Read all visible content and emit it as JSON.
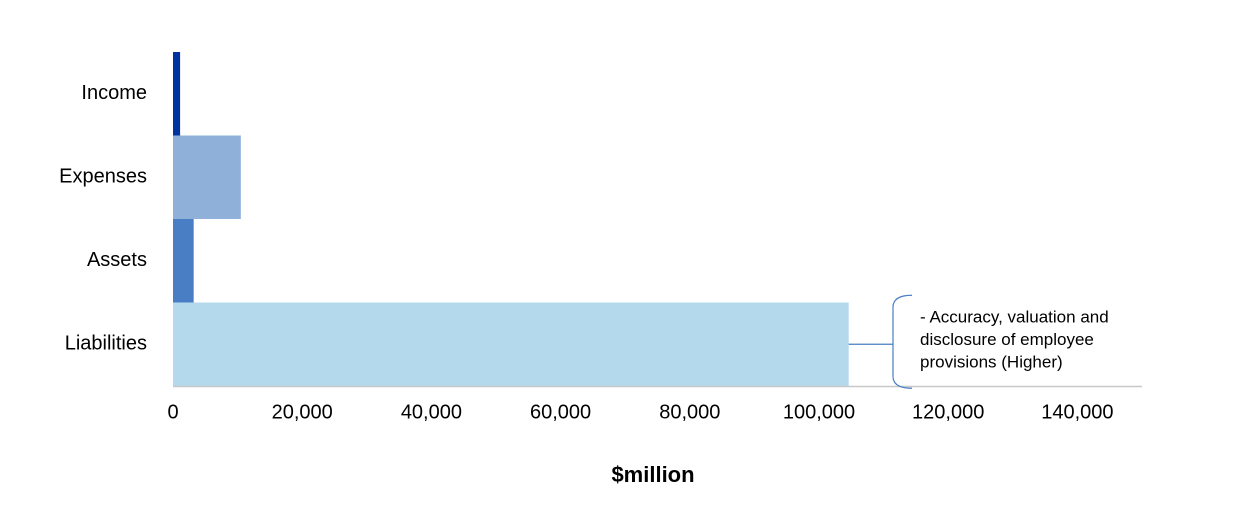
{
  "chart_data": {
    "type": "bar",
    "orientation": "horizontal",
    "categories": [
      "Income",
      "Expenses",
      "Assets",
      "Liabilities"
    ],
    "values": [
      1100,
      10500,
      3200,
      104600
    ],
    "colors": [
      "#0033a0",
      "#8eb0d9",
      "#4a7ec4",
      "#b4d9ec"
    ],
    "x_label": "$million",
    "xlim": [
      0,
      150000
    ],
    "xticks": [
      0,
      {
        "value": 20000,
        "label": "20,000"
      },
      {
        "value": 40000,
        "label": "40,000"
      },
      {
        "value": 60000,
        "label": "60,000"
      },
      {
        "value": 80000,
        "label": "80,000"
      },
      {
        "value": 100000,
        "label": "100,000"
      },
      {
        "value": 120000,
        "label": "120,000"
      },
      {
        "value": 140000,
        "label": "140,000"
      }
    ],
    "grid": false,
    "annotation": {
      "category_index": 3,
      "lines": [
        "- Accuracy, valuation and",
        "disclosure of employee",
        "provisions (Higher)"
      ]
    }
  }
}
